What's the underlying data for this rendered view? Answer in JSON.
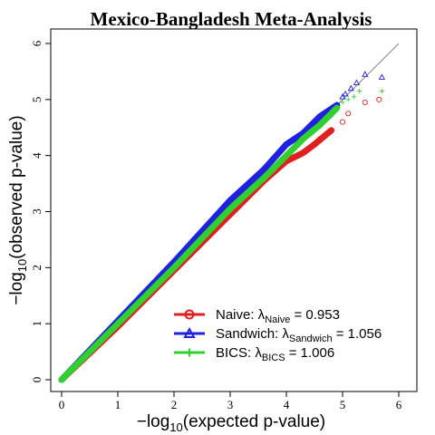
{
  "chart_data": {
    "type": "scatter",
    "title": "Mexico-Bangladesh Meta-Analysis",
    "xlabel": {
      "prefix": "−log",
      "subscript": "10",
      "suffix": "(expected p-value)"
    },
    "ylabel": {
      "prefix": "−log",
      "subscript": "10",
      "suffix": "(observed p-value)"
    },
    "xlim": [
      0,
      6
    ],
    "ylim": [
      0,
      6
    ],
    "x_ticks": [
      "0",
      "1",
      "2",
      "3",
      "4",
      "5",
      "6"
    ],
    "y_ticks": [
      "0",
      "1",
      "2",
      "3",
      "4",
      "5",
      "6"
    ],
    "reference_line": {
      "x": [
        0,
        6
      ],
      "y": [
        0,
        6
      ],
      "color": "#808080"
    },
    "legend_position": "bottom-right",
    "series": [
      {
        "name": "Naive",
        "legend_label": "Naive: λ",
        "legend_sub": "Naive",
        "legend_value": " = 0.953",
        "marker": "circle",
        "color": "#e02020",
        "dense_points": [
          [
            0,
            0
          ],
          [
            1,
            0.95
          ],
          [
            2,
            1.95
          ],
          [
            3,
            2.95
          ],
          [
            3.6,
            3.55
          ],
          [
            4,
            3.9
          ],
          [
            4.3,
            4.05
          ],
          [
            4.5,
            4.2
          ],
          [
            4.8,
            4.45
          ]
        ],
        "sparse_points": [
          [
            4.5,
            4.2
          ],
          [
            4.6,
            4.3
          ],
          [
            4.7,
            4.37
          ],
          [
            4.8,
            4.45
          ],
          [
            5,
            4.6
          ],
          [
            5.1,
            4.75
          ],
          [
            5.4,
            4.95
          ],
          [
            5.65,
            5.0
          ]
        ]
      },
      {
        "name": "Sandwich",
        "legend_label": "Sandwich: λ",
        "legend_sub": "Sandwich",
        "legend_value": " = 1.056",
        "marker": "triangle",
        "color": "#2020e0",
        "dense_points": [
          [
            0,
            0
          ],
          [
            1,
            1.05
          ],
          [
            2,
            2.1
          ],
          [
            3,
            3.2
          ],
          [
            3.6,
            3.75
          ],
          [
            4,
            4.2
          ],
          [
            4.3,
            4.4
          ],
          [
            4.6,
            4.7
          ],
          [
            4.9,
            4.9
          ]
        ],
        "sparse_points": [
          [
            4.6,
            4.7
          ],
          [
            4.8,
            4.85
          ],
          [
            4.9,
            4.9
          ],
          [
            5,
            5.05
          ],
          [
            5.05,
            5.1
          ],
          [
            5.15,
            5.2
          ],
          [
            5.25,
            5.3
          ],
          [
            5.4,
            5.45
          ],
          [
            5.7,
            5.4
          ]
        ]
      },
      {
        "name": "BICS",
        "legend_label": "BICS: λ",
        "legend_sub": "BICS",
        "legend_value": " = 1.006",
        "marker": "plus",
        "color": "#30d030",
        "dense_points": [
          [
            0,
            0
          ],
          [
            1,
            1.0
          ],
          [
            2,
            2.0
          ],
          [
            3,
            3.05
          ],
          [
            3.6,
            3.6
          ],
          [
            4,
            4.0
          ],
          [
            4.3,
            4.3
          ],
          [
            4.6,
            4.55
          ],
          [
            4.9,
            4.85
          ]
        ],
        "sparse_points": [
          [
            4.6,
            4.55
          ],
          [
            4.8,
            4.7
          ],
          [
            4.9,
            4.85
          ],
          [
            5,
            4.95
          ],
          [
            5.1,
            5.0
          ],
          [
            5.2,
            5.05
          ],
          [
            5.3,
            5.15
          ],
          [
            5.7,
            5.15
          ]
        ]
      }
    ]
  }
}
